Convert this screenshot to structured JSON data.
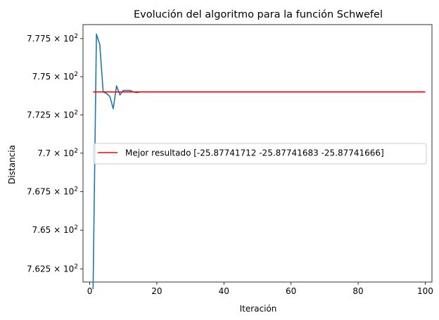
{
  "chart_data": {
    "type": "line",
    "title": "Evolución del algoritmo para la función Schwefel",
    "xlabel": "Iteración",
    "ylabel": "Distancia",
    "xlim": [
      -2,
      102
    ],
    "ylim": [
      761.65,
      778.42
    ],
    "x_ticks": [
      {
        "value": 0,
        "label": "0"
      },
      {
        "value": 20,
        "label": "20"
      },
      {
        "value": 40,
        "label": "40"
      },
      {
        "value": 60,
        "label": "60"
      },
      {
        "value": 80,
        "label": "80"
      },
      {
        "value": 100,
        "label": "100"
      }
    ],
    "y_ticks": [
      {
        "value": 762.5,
        "mantissa": "7.625",
        "base": "10",
        "exp": "2"
      },
      {
        "value": 765.0,
        "mantissa": "7.65",
        "base": "10",
        "exp": "2"
      },
      {
        "value": 767.5,
        "mantissa": "7.675",
        "base": "10",
        "exp": "2"
      },
      {
        "value": 770.0,
        "mantissa": "7.7",
        "base": "10",
        "exp": "2"
      },
      {
        "value": 772.5,
        "mantissa": "7.725",
        "base": "10",
        "exp": "2"
      },
      {
        "value": 775.0,
        "mantissa": "7.75",
        "base": "10",
        "exp": "2"
      },
      {
        "value": 777.5,
        "mantissa": "7.775",
        "base": "10",
        "exp": "2"
      }
    ],
    "y_scale": "log",
    "grid": false,
    "legend_position": "center-right",
    "series": [
      {
        "color": "#1f77b4",
        "x": [
          1,
          2,
          3,
          4,
          5,
          6,
          7,
          8,
          9,
          10,
          11,
          12,
          13,
          14,
          15,
          16,
          17,
          18,
          19,
          20,
          30,
          40,
          50,
          60,
          70,
          80,
          90,
          100
        ],
        "y": [
          761.2,
          777.8,
          777.1,
          774.0,
          773.9,
          773.7,
          772.9,
          774.4,
          773.8,
          774.1,
          774.1,
          774.1,
          774.0,
          773.95,
          774.0,
          774.0,
          774.0,
          774.0,
          774.0,
          774.0,
          774.0,
          774.0,
          774.0,
          774.0,
          774.0,
          774.0,
          774.0,
          774.0
        ]
      },
      {
        "name": "Mejor resultado [-25.87741712 -25.87741683 -25.87741666]",
        "color": "#ff0000",
        "x": [
          1,
          100
        ],
        "y": [
          774.0,
          774.0
        ]
      }
    ]
  }
}
